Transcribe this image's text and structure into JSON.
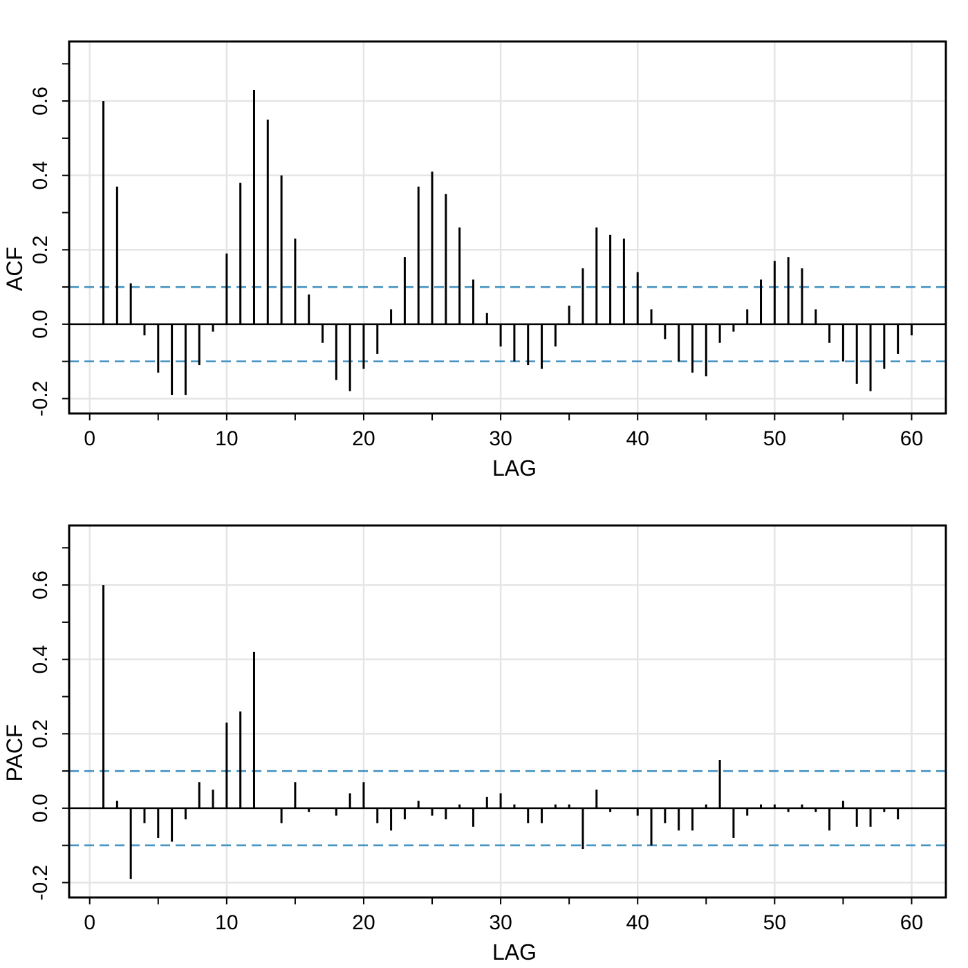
{
  "chart_data": [
    {
      "type": "bar",
      "ylabel": "ACF",
      "xlabel": "LAG",
      "xlim": [
        -1.5,
        62.5
      ],
      "ylim": [
        -0.24,
        0.76
      ],
      "xticks": [
        0,
        10,
        20,
        30,
        40,
        50,
        60
      ],
      "xtick_labels": [
        "0",
        "10",
        "20",
        "30",
        "40",
        "50",
        "60"
      ],
      "yticks": [
        -0.2,
        0.0,
        0.2,
        0.4,
        0.6
      ],
      "ytick_labels": [
        "-0.2",
        "0.0",
        "0.2",
        "0.4",
        "0.6"
      ],
      "grid": true,
      "confidence_bound": 0.1,
      "lags": [
        1,
        2,
        3,
        4,
        5,
        6,
        7,
        8,
        9,
        10,
        11,
        12,
        13,
        14,
        15,
        16,
        17,
        18,
        19,
        20,
        21,
        22,
        23,
        24,
        25,
        26,
        27,
        28,
        29,
        30,
        31,
        32,
        33,
        34,
        35,
        36,
        37,
        38,
        39,
        40,
        41,
        42,
        43,
        44,
        45,
        46,
        47,
        48,
        49,
        50,
        51,
        52,
        53,
        54,
        55,
        56,
        57,
        58,
        59,
        60
      ],
      "values": [
        0.6,
        0.37,
        0.11,
        -0.03,
        -0.13,
        -0.19,
        -0.19,
        -0.11,
        -0.02,
        0.19,
        0.38,
        0.63,
        0.55,
        0.4,
        0.23,
        0.08,
        -0.05,
        -0.15,
        -0.18,
        -0.12,
        -0.08,
        0.04,
        0.18,
        0.37,
        0.41,
        0.35,
        0.26,
        0.12,
        0.03,
        -0.06,
        -0.1,
        -0.11,
        -0.12,
        -0.06,
        0.05,
        0.15,
        0.26,
        0.24,
        0.23,
        0.14,
        0.04,
        -0.04,
        -0.1,
        -0.13,
        -0.14,
        -0.05,
        -0.02,
        0.04,
        0.12,
        0.17,
        0.18,
        0.15,
        0.04,
        -0.05,
        -0.1,
        -0.16,
        -0.18,
        -0.12,
        -0.08,
        -0.03
      ]
    },
    {
      "type": "bar",
      "ylabel": "PACF",
      "xlabel": "LAG",
      "xlim": [
        -1.5,
        62.5
      ],
      "ylim": [
        -0.24,
        0.76
      ],
      "xticks": [
        0,
        10,
        20,
        30,
        40,
        50,
        60
      ],
      "xtick_labels": [
        "0",
        "10",
        "20",
        "30",
        "40",
        "50",
        "60"
      ],
      "yticks": [
        -0.2,
        0.0,
        0.2,
        0.4,
        0.6
      ],
      "ytick_labels": [
        "-0.2",
        "0.0",
        "0.2",
        "0.4",
        "0.6"
      ],
      "grid": true,
      "confidence_bound": 0.1,
      "lags": [
        1,
        2,
        3,
        4,
        5,
        6,
        7,
        8,
        9,
        10,
        11,
        12,
        13,
        14,
        15,
        16,
        17,
        18,
        19,
        20,
        21,
        22,
        23,
        24,
        25,
        26,
        27,
        28,
        29,
        30,
        31,
        32,
        33,
        34,
        35,
        36,
        37,
        38,
        39,
        40,
        41,
        42,
        43,
        44,
        45,
        46,
        47,
        48,
        49,
        50,
        51,
        52,
        53,
        54,
        55,
        56,
        57,
        58,
        59,
        60
      ],
      "values": [
        0.6,
        0.02,
        -0.19,
        -0.04,
        -0.08,
        -0.09,
        -0.03,
        0.07,
        0.05,
        0.23,
        0.26,
        0.42,
        0.0,
        -0.04,
        0.07,
        -0.01,
        0.0,
        -0.02,
        0.04,
        0.07,
        -0.04,
        -0.06,
        -0.03,
        0.02,
        -0.02,
        -0.03,
        0.01,
        -0.05,
        0.03,
        0.04,
        0.01,
        -0.04,
        -0.04,
        0.01,
        0.01,
        -0.11,
        0.05,
        -0.01,
        0.0,
        -0.02,
        -0.1,
        -0.04,
        -0.06,
        -0.06,
        0.01,
        0.13,
        -0.08,
        -0.02,
        0.01,
        0.01,
        -0.01,
        0.01,
        -0.01,
        -0.06,
        0.02,
        -0.05,
        -0.05,
        -0.01,
        -0.03,
        0.0
      ]
    }
  ],
  "colors": {
    "bars": "#000000",
    "confidence_band": "#3f8fbf",
    "grid": "#e5e5e5",
    "frame": "#000000"
  }
}
